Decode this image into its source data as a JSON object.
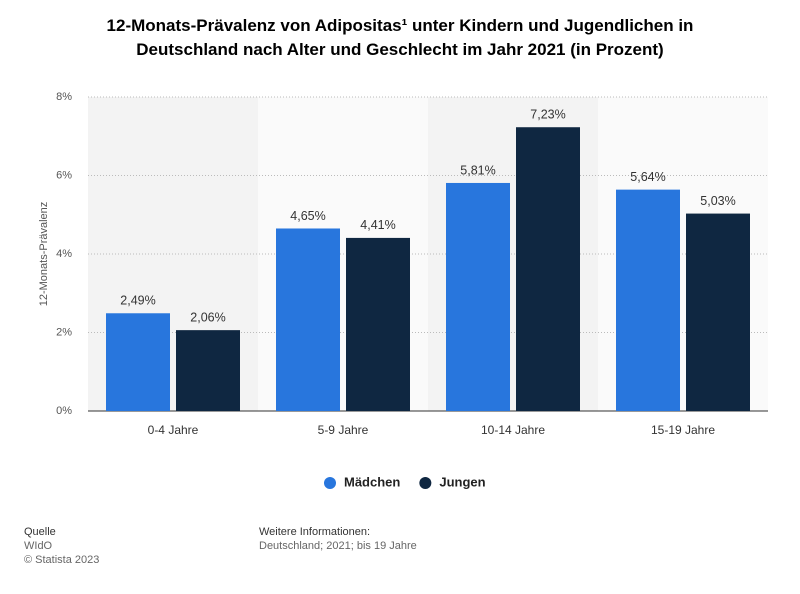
{
  "chart_data": {
    "type": "bar",
    "title": "12-Monats-Prävalenz von Adipositas¹ unter Kindern und Jugendlichen in Deutschland nach Alter und Geschlecht im Jahr 2021 (in Prozent)",
    "y_label": "12-Monats-Prävalenz",
    "categories": [
      "0-4 Jahre",
      "5-9 Jahre",
      "10-14 Jahre",
      "15-19 Jahre"
    ],
    "series": [
      {
        "name": "Mädchen",
        "color": "#2876dd",
        "values": [
          2.49,
          4.65,
          5.81,
          5.64
        ],
        "value_labels": [
          "2,49%",
          "4,65%",
          "5,81%",
          "5,64%"
        ]
      },
      {
        "name": "Jungen",
        "color": "#0f2741",
        "values": [
          2.06,
          4.41,
          7.23,
          5.03
        ],
        "value_labels": [
          "2,06%",
          "4,41%",
          "7,23%",
          "5,03%"
        ]
      }
    ],
    "ylim": [
      0,
      8
    ],
    "yticks": [
      {
        "value": 0,
        "label": "0%"
      },
      {
        "value": 2,
        "label": "2%"
      },
      {
        "value": 4,
        "label": "4%"
      },
      {
        "value": 6,
        "label": "6%"
      },
      {
        "value": 8,
        "label": "8%"
      }
    ],
    "grid": true
  },
  "footer": {
    "source_label": "Quelle",
    "source": "WIdO",
    "copyright": "© Statista 2023",
    "info_label": "Weitere Informationen:",
    "info": "Deutschland; 2021; bis 19 Jahre"
  }
}
